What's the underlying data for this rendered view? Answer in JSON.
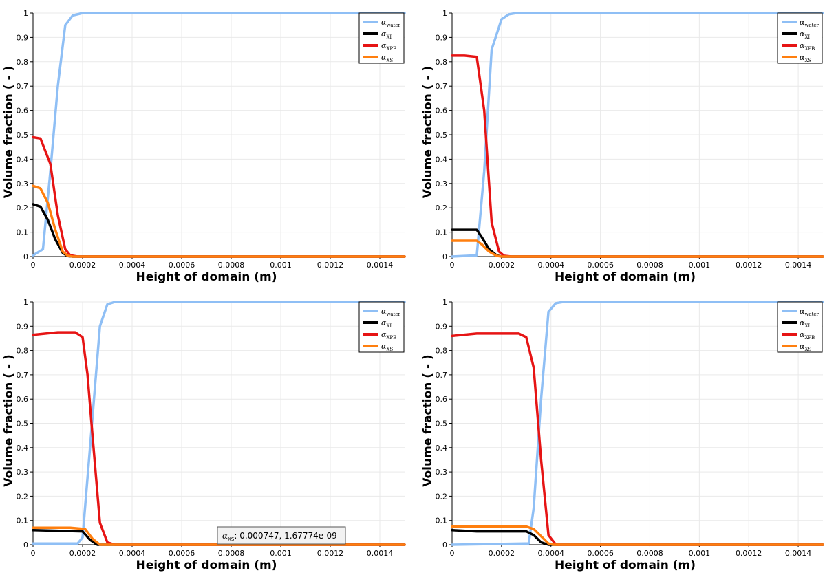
{
  "chart_data": [
    {
      "type": "line",
      "xlabel": "Height of domain (m)",
      "ylabel": "Volume fraction ( - )",
      "xlim": [
        0,
        0.0015
      ],
      "ylim": [
        0,
        1
      ],
      "xticks": [
        "0",
        "0.0002",
        "0.0004",
        "0.0006",
        "0.0008",
        "0.001",
        "0.0012",
        "0.0014"
      ],
      "yticks": [
        "0",
        "0.1",
        "0.2",
        "0.3",
        "0.4",
        "0.5",
        "0.6",
        "0.7",
        "0.8",
        "0.9",
        "1"
      ],
      "grid": true,
      "legend_position": "top-right",
      "series": [
        {
          "name": "α_water",
          "color": "#8fbff5",
          "x": [
            0,
            4e-05,
            7e-05,
            0.0001,
            0.00013,
            0.00016,
            0.0002,
            0.0015
          ],
          "y": [
            0.005,
            0.03,
            0.35,
            0.7,
            0.95,
            0.99,
            1,
            1
          ]
        },
        {
          "name": "α_XI",
          "color": "#000000",
          "x": [
            0,
            3e-05,
            6e-05,
            9e-05,
            0.00012,
            0.00014,
            0.00016,
            0.0015
          ],
          "y": [
            0.215,
            0.205,
            0.15,
            0.07,
            0.015,
            0.002,
            0,
            0
          ]
        },
        {
          "name": "α_XPB",
          "color": "#e61414",
          "x": [
            0,
            3e-05,
            7e-05,
            0.0001,
            0.00013,
            0.00015,
            0.00018,
            0.0015
          ],
          "y": [
            0.49,
            0.485,
            0.38,
            0.17,
            0.03,
            0.005,
            0,
            0
          ]
        },
        {
          "name": "α_XS",
          "color": "#ff7f0e",
          "x": [
            0,
            3e-05,
            6e-05,
            9e-05,
            0.00012,
            0.00014,
            0.00016,
            0.0015
          ],
          "y": [
            0.29,
            0.28,
            0.22,
            0.11,
            0.02,
            0.003,
            0,
            0
          ]
        }
      ]
    },
    {
      "type": "line",
      "xlabel": "Height of domain (m)",
      "ylabel": "Volume fraction ( - )",
      "xlim": [
        0,
        0.0015
      ],
      "ylim": [
        0,
        1
      ],
      "xticks": [
        "0",
        "0.0002",
        "0.0004",
        "0.0006",
        "0.0008",
        "0.001",
        "0.0012",
        "0.0014"
      ],
      "yticks": [
        "0",
        "0.1",
        "0.2",
        "0.3",
        "0.4",
        "0.5",
        "0.6",
        "0.7",
        "0.8",
        "0.9",
        "1"
      ],
      "grid": true,
      "legend_position": "top-right",
      "series": [
        {
          "name": "α_water",
          "color": "#8fbff5",
          "x": [
            0,
            0.0001,
            0.00013,
            0.00016,
            0.0002,
            0.00023,
            0.00026,
            0.0015
          ],
          "y": [
            0,
            0.005,
            0.35,
            0.85,
            0.975,
            0.995,
            1,
            1
          ]
        },
        {
          "name": "α_XI",
          "color": "#000000",
          "x": [
            0,
            0.0001,
            0.00012,
            0.00015,
            0.00018,
            0.0002,
            0.0015
          ],
          "y": [
            0.11,
            0.11,
            0.08,
            0.03,
            0.005,
            0,
            0
          ]
        },
        {
          "name": "α_XPB",
          "color": "#e61414",
          "x": [
            0,
            5e-05,
            0.0001,
            0.00013,
            0.00016,
            0.00019,
            0.00021,
            0.00024,
            0.0015
          ],
          "y": [
            0.825,
            0.825,
            0.82,
            0.6,
            0.14,
            0.02,
            0.003,
            0,
            0
          ]
        },
        {
          "name": "α_XS",
          "color": "#ff7f0e",
          "x": [
            0,
            0.0001,
            0.00012,
            0.00015,
            0.00018,
            0.0002,
            0.0015
          ],
          "y": [
            0.065,
            0.065,
            0.05,
            0.02,
            0.003,
            0,
            0
          ]
        }
      ]
    },
    {
      "type": "line",
      "xlabel": "Height of domain (m)",
      "ylabel": "Volume fraction ( - )",
      "xlim": [
        0,
        0.0015
      ],
      "ylim": [
        0,
        1
      ],
      "xticks": [
        "0",
        "0.0002",
        "0.0004",
        "0.0006",
        "0.0008",
        "0.001",
        "0.0012",
        "0.0014"
      ],
      "yticks": [
        "0",
        "0.1",
        "0.2",
        "0.3",
        "0.4",
        "0.5",
        "0.6",
        "0.7",
        "0.8",
        "0.9",
        "1"
      ],
      "grid": true,
      "legend_position": "top-right",
      "tooltip": {
        "series": "α_XS",
        "text": ": 0.000747,  1.67774e-09"
      },
      "series": [
        {
          "name": "α_water",
          "color": "#8fbff5",
          "x": [
            0,
            0.00018,
            0.0002,
            0.00023,
            0.00027,
            0.0003,
            0.00033,
            0.0015
          ],
          "y": [
            0.005,
            0.005,
            0.03,
            0.4,
            0.9,
            0.99,
            1,
            1
          ]
        },
        {
          "name": "α_XI",
          "color": "#000000",
          "x": [
            0,
            0.0002,
            0.00023,
            0.00026,
            0.0015
          ],
          "y": [
            0.06,
            0.055,
            0.02,
            0,
            0
          ]
        },
        {
          "name": "α_XPB",
          "color": "#e61414",
          "x": [
            0,
            0.0001,
            0.00017,
            0.0002,
            0.00022,
            0.00024,
            0.00027,
            0.0003,
            0.00033,
            0.0015
          ],
          "y": [
            0.865,
            0.875,
            0.875,
            0.855,
            0.7,
            0.45,
            0.09,
            0.01,
            0,
            0
          ]
        },
        {
          "name": "α_XS",
          "color": "#ff7f0e",
          "x": [
            0,
            0.00015,
            0.00021,
            0.00024,
            0.00027,
            0.0015
          ],
          "y": [
            0.07,
            0.07,
            0.065,
            0.025,
            0,
            0
          ]
        }
      ]
    },
    {
      "type": "line",
      "xlabel": "Height of domain (m)",
      "ylabel": "Volume fraction ( - )",
      "xlim": [
        0,
        0.0015
      ],
      "ylim": [
        0,
        1
      ],
      "xticks": [
        "0",
        "0.0002",
        "0.0004",
        "0.0006",
        "0.0008",
        "0.001",
        "0.0012",
        "0.0014"
      ],
      "yticks": [
        "0",
        "0.1",
        "0.2",
        "0.3",
        "0.4",
        "0.5",
        "0.6",
        "0.7",
        "0.8",
        "0.9",
        "1"
      ],
      "grid": true,
      "legend_position": "top-right",
      "series": [
        {
          "name": "α_water",
          "color": "#8fbff5",
          "x": [
            0,
            0.00031,
            0.00033,
            0.00036,
            0.00039,
            0.00042,
            0.00045,
            0.0015
          ],
          "y": [
            0,
            0.005,
            0.15,
            0.6,
            0.96,
            0.995,
            1,
            1
          ]
        },
        {
          "name": "α_XI",
          "color": "#000000",
          "x": [
            0,
            0.0001,
            0.0003,
            0.00033,
            0.00036,
            0.00039,
            0.0015
          ],
          "y": [
            0.06,
            0.055,
            0.055,
            0.04,
            0.01,
            0,
            0
          ]
        },
        {
          "name": "α_XPB",
          "color": "#e61414",
          "x": [
            0,
            0.0001,
            0.0002,
            0.00027,
            0.0003,
            0.00033,
            0.00036,
            0.00039,
            0.00042,
            0.0015
          ],
          "y": [
            0.86,
            0.87,
            0.87,
            0.87,
            0.855,
            0.73,
            0.35,
            0.04,
            0,
            0
          ]
        },
        {
          "name": "α_XS",
          "color": "#ff7f0e",
          "x": [
            0,
            0.0001,
            0.0003,
            0.00033,
            0.00036,
            0.00039,
            0.00041,
            0.0015
          ],
          "y": [
            0.075,
            0.075,
            0.075,
            0.065,
            0.035,
            0.005,
            0,
            0
          ]
        }
      ]
    }
  ]
}
